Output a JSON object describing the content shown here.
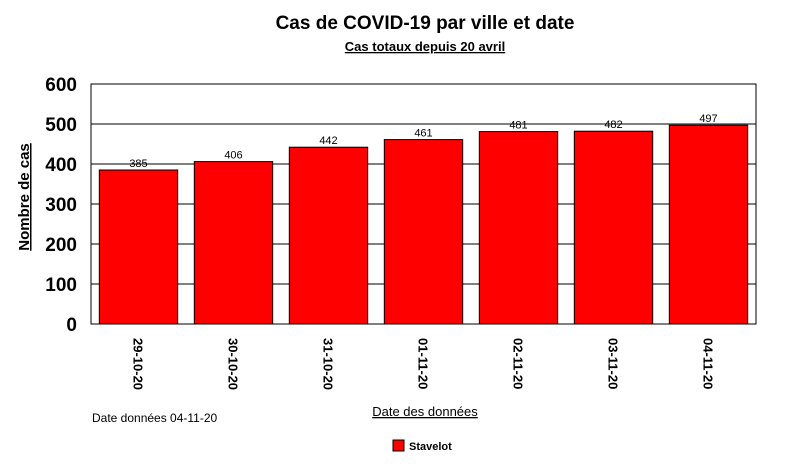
{
  "chart_data": {
    "type": "bar",
    "title": "Cas de COVID-19 par ville et date",
    "subtitle": "Cas totaux depuis 20 avril",
    "ylabel": "Nombre de cas",
    "xlabel": "Date des données",
    "ylim": [
      0,
      600
    ],
    "yticks": [
      0,
      100,
      200,
      300,
      400,
      500,
      600
    ],
    "grid": true,
    "categories": [
      "29-10-20",
      "30-10-20",
      "31-10-20",
      "01-11-20",
      "02-11-20",
      "03-11-20",
      "04-11-20"
    ],
    "series": [
      {
        "name": "Stavelot",
        "values": [
          385,
          406,
          442,
          461,
          481,
          482,
          497
        ],
        "color": "#ff0000"
      }
    ],
    "legend_position": "bottom-center"
  },
  "footnote": "Date données  04-11-20"
}
